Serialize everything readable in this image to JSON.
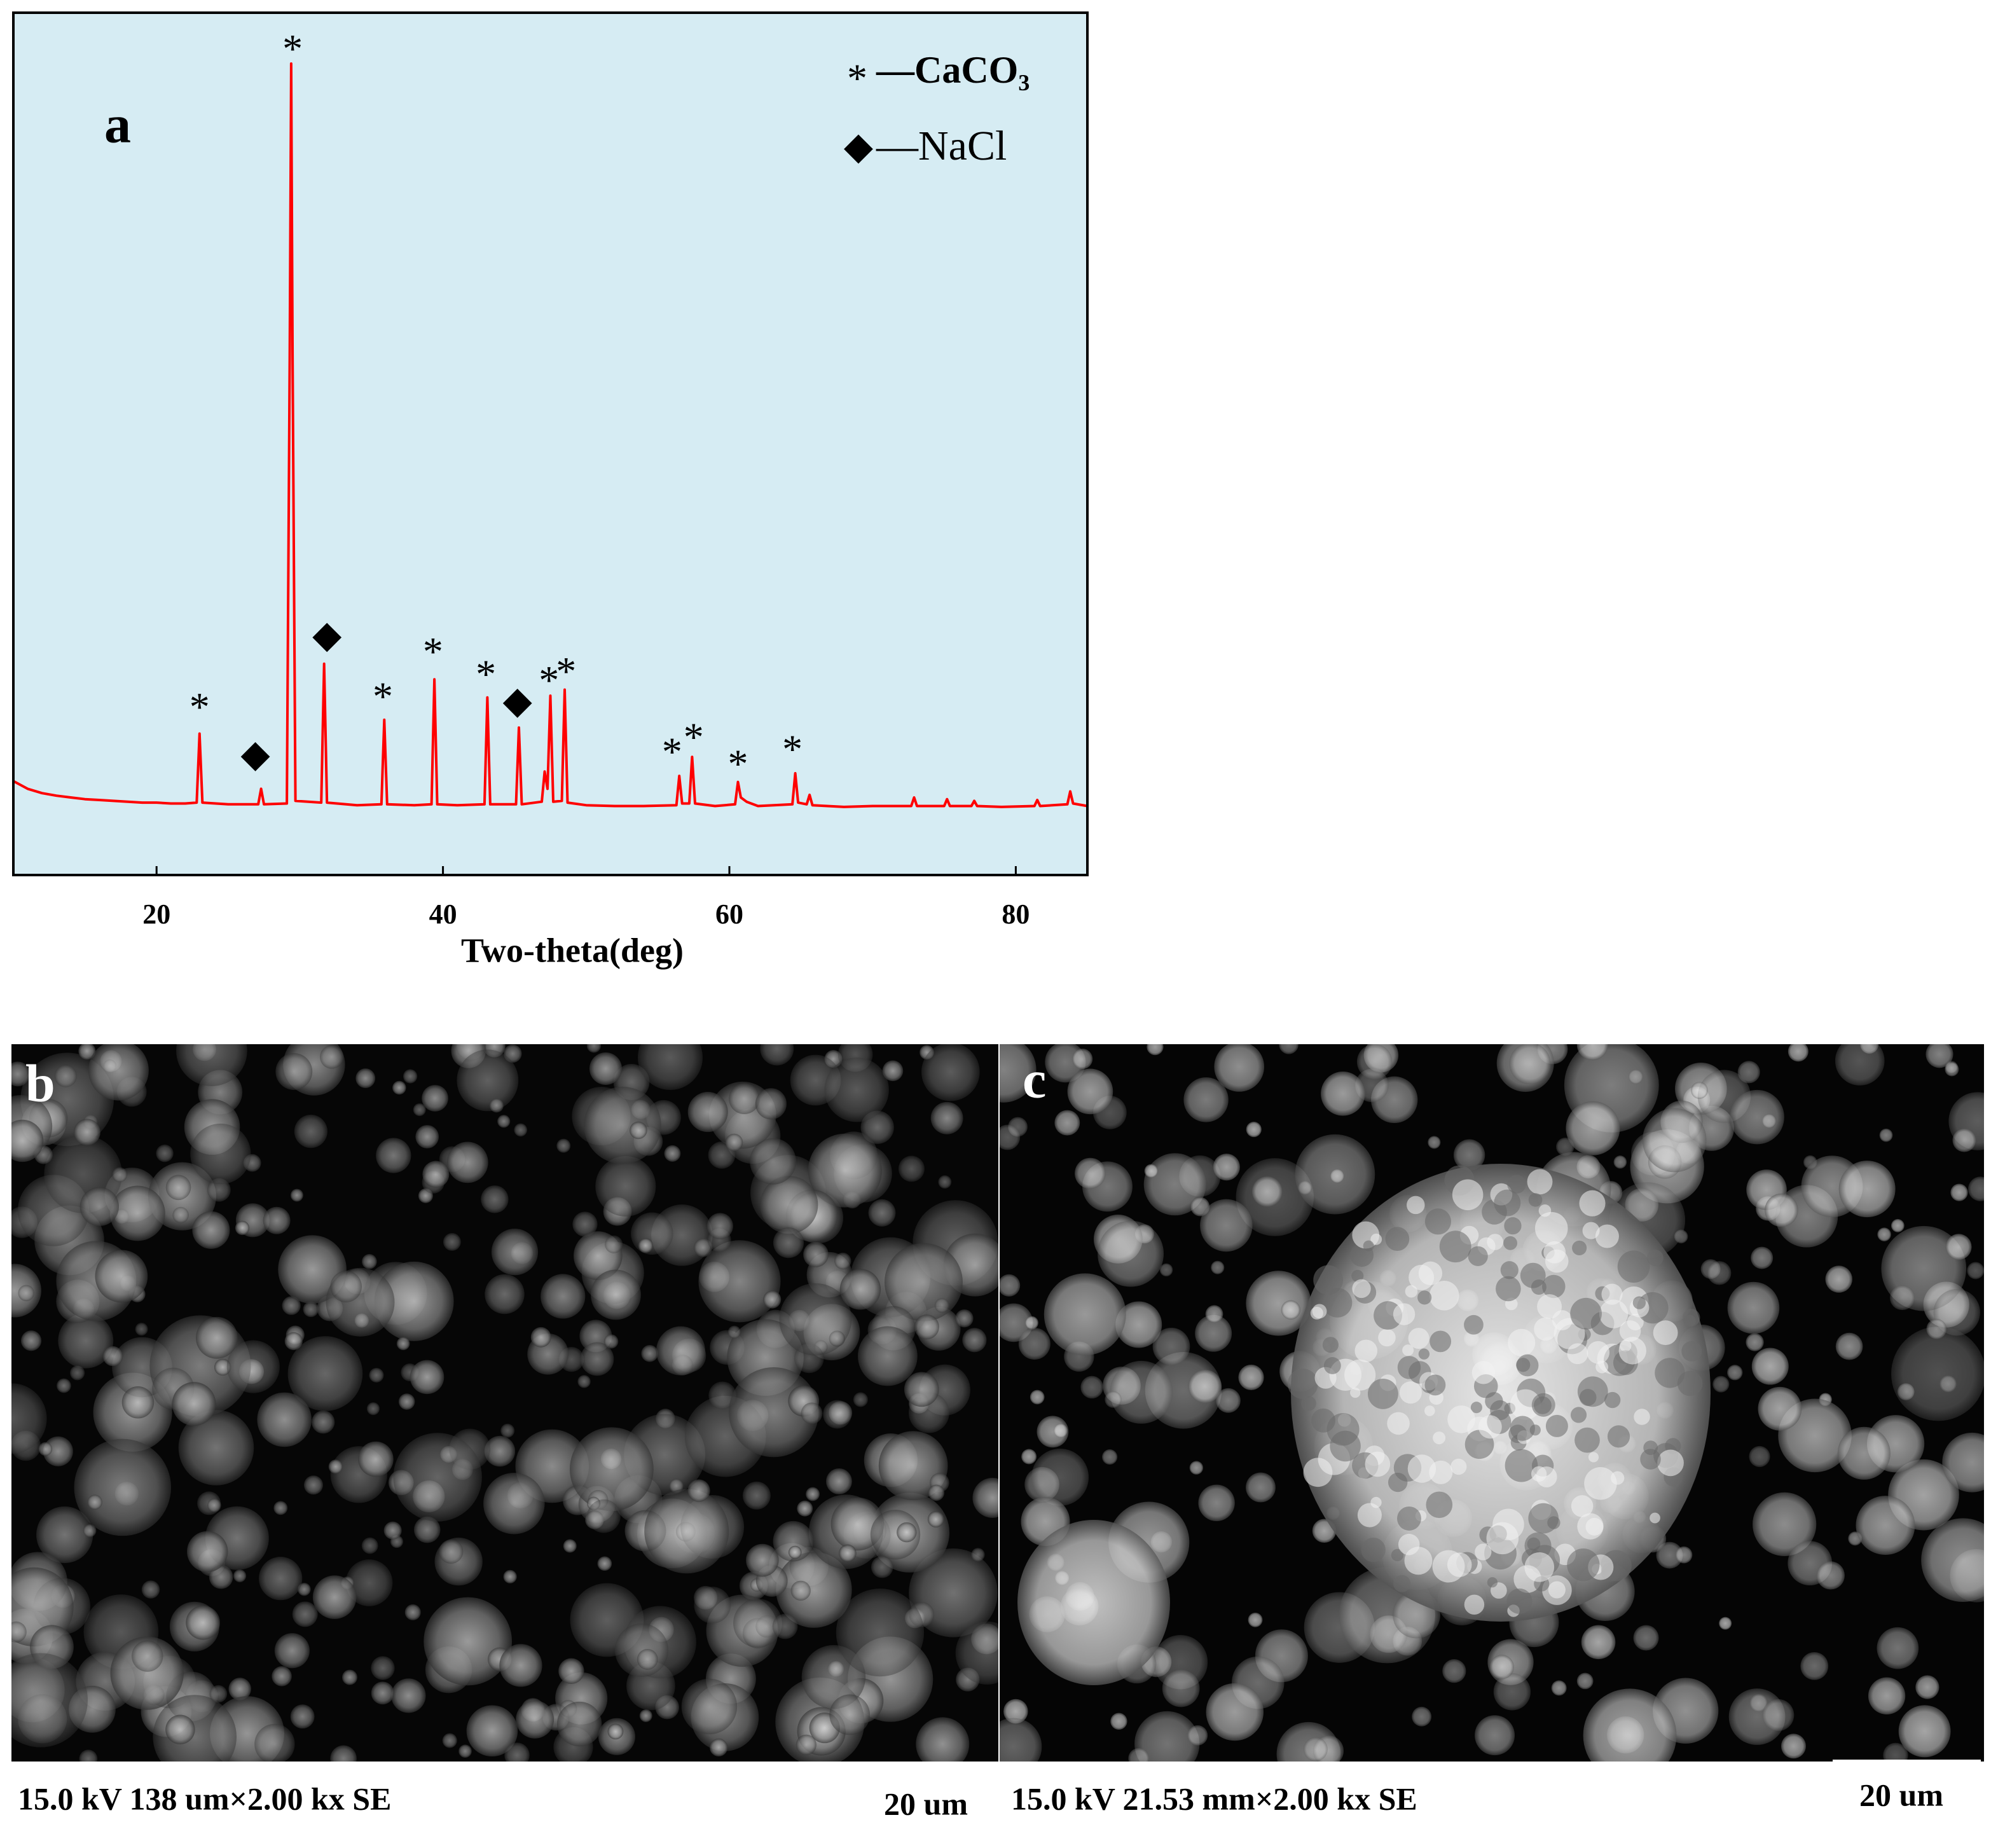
{
  "chart_data": {
    "type": "line",
    "panel_label": "a",
    "x_label": "Two-theta(deg)",
    "xlim": [
      10,
      85
    ],
    "xticks": [
      20,
      40,
      60,
      80
    ],
    "ylim": [
      0,
      100
    ],
    "background": "#d6ecf3",
    "x": [
      10,
      11,
      12,
      13,
      14,
      15,
      16,
      17,
      18,
      19,
      20,
      21,
      22,
      22.8,
      23.0,
      23.2,
      25,
      27.1,
      27.3,
      27.5,
      29.1,
      29.3,
      29.4,
      29.5,
      29.7,
      31.5,
      31.7,
      31.9,
      34,
      35.7,
      35.9,
      36.1,
      38,
      39.2,
      39.4,
      39.6,
      41,
      42.9,
      43.1,
      43.3,
      45.1,
      45.3,
      45.5,
      46.9,
      47.1,
      47.3,
      47.5,
      47.7,
      48.3,
      48.5,
      48.7,
      50,
      52,
      54,
      56.3,
      56.5,
      56.7,
      57.2,
      57.4,
      57.6,
      59,
      60.4,
      60.6,
      60.8,
      61.2,
      62,
      64.4,
      64.6,
      64.8,
      65.4,
      65.6,
      65.8,
      68,
      70,
      72.7,
      72.9,
      73.1,
      75.0,
      75.2,
      75.4,
      76.9,
      77.1,
      77.3,
      79,
      81.3,
      81.5,
      81.7,
      83.6,
      83.8,
      84.0,
      85
    ],
    "series": [
      {
        "color": "#ff0000",
        "values": [
          10.9,
          10.0,
          9.5,
          9.2,
          9.0,
          8.8,
          8.7,
          8.6,
          8.5,
          8.4,
          8.4,
          8.3,
          8.3,
          8.4,
          16.4,
          8.4,
          8.2,
          8.2,
          10.0,
          8.2,
          8.3,
          60,
          94.1,
          60,
          8.6,
          8.4,
          24.5,
          8.4,
          8.1,
          8.2,
          18.0,
          8.2,
          8.1,
          8.2,
          22.7,
          8.2,
          8.1,
          8.2,
          20.6,
          8.2,
          8.2,
          17.1,
          8.2,
          8.5,
          12.0,
          10.0,
          20.8,
          8.5,
          8.6,
          21.5,
          8.4,
          8.1,
          8.0,
          8.0,
          8.1,
          11.5,
          8.3,
          8.3,
          13.7,
          8.3,
          8.0,
          8.2,
          10.8,
          9.0,
          8.5,
          8.0,
          8.2,
          11.8,
          8.4,
          8.2,
          9.3,
          8.1,
          7.9,
          8.0,
          8.0,
          9.0,
          8.0,
          8.0,
          8.8,
          8.0,
          8.0,
          8.6,
          8.0,
          7.9,
          8.0,
          8.7,
          8.0,
          8.2,
          9.7,
          8.3,
          8.0
        ]
      }
    ],
    "legend": [
      {
        "symbol": "*",
        "label": "—CaCO₃"
      },
      {
        "symbol": "◆",
        "label": "—NaCl"
      }
    ],
    "markers": [
      {
        "symbol": "*",
        "x": 23.0,
        "y": 19.9
      },
      {
        "symbol": "◆",
        "x": 26.9,
        "y": 13.6
      },
      {
        "symbol": "*",
        "x": 29.5,
        "y": 96.2
      },
      {
        "symbol": "◆",
        "x": 31.9,
        "y": 27.4
      },
      {
        "symbol": "*",
        "x": 35.8,
        "y": 21.1
      },
      {
        "symbol": "*",
        "x": 39.3,
        "y": 26.3
      },
      {
        "symbol": "*",
        "x": 43.0,
        "y": 23.7
      },
      {
        "symbol": "◆",
        "x": 45.2,
        "y": 19.8
      },
      {
        "symbol": "*",
        "x": 47.4,
        "y": 23.0
      },
      {
        "symbol": "*",
        "x": 48.6,
        "y": 24.0
      },
      {
        "symbol": "*",
        "x": 56.0,
        "y": 14.7
      },
      {
        "symbol": "*",
        "x": 57.5,
        "y": 16.4
      },
      {
        "symbol": "*",
        "x": 60.6,
        "y": 13.3
      },
      {
        "symbol": "*",
        "x": 64.4,
        "y": 15.0
      }
    ]
  },
  "images": [
    {
      "label": "b",
      "caption": "15.0 kV 138 um×2.00 kx SE",
      "scale_bar": "20 um"
    },
    {
      "label": "c",
      "caption": "15.0 kV 21.53 mm×2.00 kx SE",
      "scale_bar": "20 um"
    }
  ]
}
